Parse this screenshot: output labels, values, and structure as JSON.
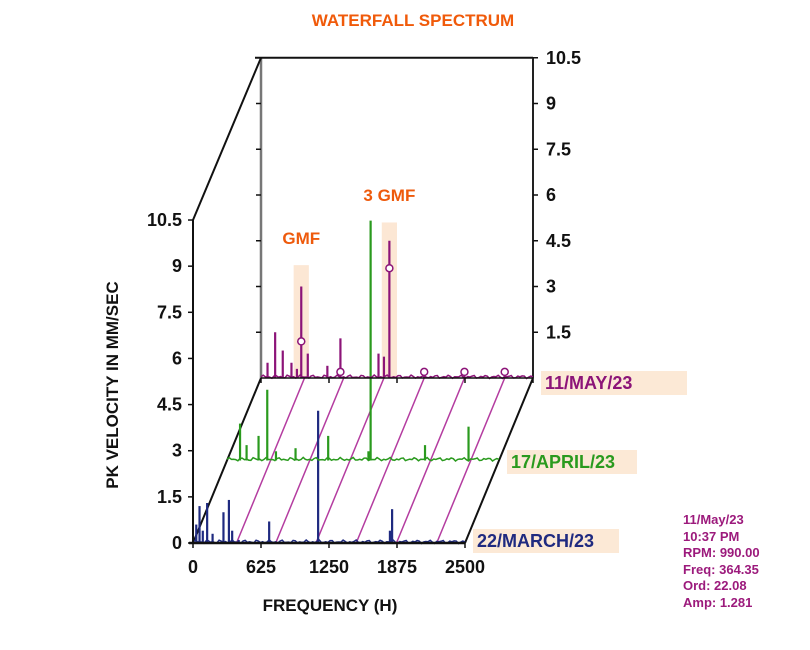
{
  "chart_data": {
    "type": "line",
    "subtype": "waterfall-3d",
    "title": "WATERFALL SPECTRUM",
    "xlabel": "FREQUENCY (H)",
    "ylabel": "PK VELOCITY IN MM/SEC",
    "xlim": [
      0,
      2500
    ],
    "ylim": [
      0,
      10.5
    ],
    "x_ticks": [
      "0",
      "625",
      "1250",
      "1875",
      "2500"
    ],
    "y_ticks_front": [
      "0",
      "1.5",
      "3",
      "4.5",
      "6",
      "7.5",
      "9",
      "10.5"
    ],
    "y_ticks_back": [
      "1.5",
      "3",
      "4.5",
      "6",
      "7.5",
      "9",
      "10.5"
    ],
    "grid": false,
    "harmonic_guide_frequencies": [
      400,
      760,
      1130,
      1500,
      1870,
      2240
    ],
    "series": [
      {
        "name": "22/MARCH/23",
        "color": "#1f2a80",
        "depth": 0,
        "peaks": [
          {
            "x": 30,
            "y": 0.6
          },
          {
            "x": 60,
            "y": 1.2
          },
          {
            "x": 90,
            "y": 0.4
          },
          {
            "x": 130,
            "y": 1.3
          },
          {
            "x": 180,
            "y": 0.3
          },
          {
            "x": 280,
            "y": 1.0
          },
          {
            "x": 330,
            "y": 1.4
          },
          {
            "x": 360,
            "y": 0.4
          },
          {
            "x": 420,
            "y": 0.1
          },
          {
            "x": 700,
            "y": 0.7
          },
          {
            "x": 1150,
            "y": 4.3
          },
          {
            "x": 1830,
            "y": 1.1
          },
          {
            "x": 1810,
            "y": 0.4
          }
        ]
      },
      {
        "name": "17/APRIL/23",
        "color": "#2a9a1e",
        "depth": 1,
        "peaks": [
          {
            "x": 120,
            "y": 1.2
          },
          {
            "x": 180,
            "y": 0.5
          },
          {
            "x": 290,
            "y": 0.8
          },
          {
            "x": 370,
            "y": 2.3
          },
          {
            "x": 450,
            "y": 0.3
          },
          {
            "x": 630,
            "y": 0.4
          },
          {
            "x": 930,
            "y": 0.8
          },
          {
            "x": 1320,
            "y": 7.8
          },
          {
            "x": 1300,
            "y": 0.3
          },
          {
            "x": 1820,
            "y": 0.5
          },
          {
            "x": 2220,
            "y": 1.1
          }
        ]
      },
      {
        "name": "11/MAY/23",
        "color": "#8c1478",
        "depth": 2,
        "peaks": [
          {
            "x": 60,
            "y": 0.5
          },
          {
            "x": 130,
            "y": 1.5
          },
          {
            "x": 200,
            "y": 0.9
          },
          {
            "x": 280,
            "y": 0.5
          },
          {
            "x": 330,
            "y": 0.3
          },
          {
            "x": 430,
            "y": 0.8
          },
          {
            "x": 370,
            "y": 3.0
          },
          {
            "x": 610,
            "y": 0.4
          },
          {
            "x": 730,
            "y": 1.3
          },
          {
            "x": 1080,
            "y": 0.8
          },
          {
            "x": 1130,
            "y": 0.7
          },
          {
            "x": 1180,
            "y": 4.5
          },
          {
            "x": 1500,
            "y": 0.3
          },
          {
            "x": 1870,
            "y": 0.3
          },
          {
            "x": 2240,
            "y": 0.3
          }
        ],
        "markers": [
          {
            "x": 370,
            "y": 1.2
          },
          {
            "x": 730,
            "y": 0.2
          },
          {
            "x": 1180,
            "y": 3.6
          },
          {
            "x": 1500,
            "y": 0.2
          },
          {
            "x": 1870,
            "y": 0.2
          },
          {
            "x": 2240,
            "y": 0.2
          }
        ]
      }
    ],
    "annotations": [
      {
        "text": "GMF",
        "x": 370,
        "band": [
          300,
          440
        ],
        "band_top": 3.1
      },
      {
        "text": "3 GMF",
        "x": 1180,
        "band": [
          1110,
          1250
        ],
        "band_top": 4.5
      }
    ]
  },
  "cursor_info": {
    "date": "11/May/23",
    "time": "10:37 PM",
    "rpm": "RPM: 990.00",
    "freq": "Freq: 364.35",
    "ord": "Ord: 22.08",
    "amp": "Amp: 1.281"
  },
  "colors": {
    "title": "#f05a0a",
    "annotation": "#ee5a0c",
    "band": "#fbe3cc",
    "guide": "#b43ca0",
    "axis": "#111111"
  }
}
